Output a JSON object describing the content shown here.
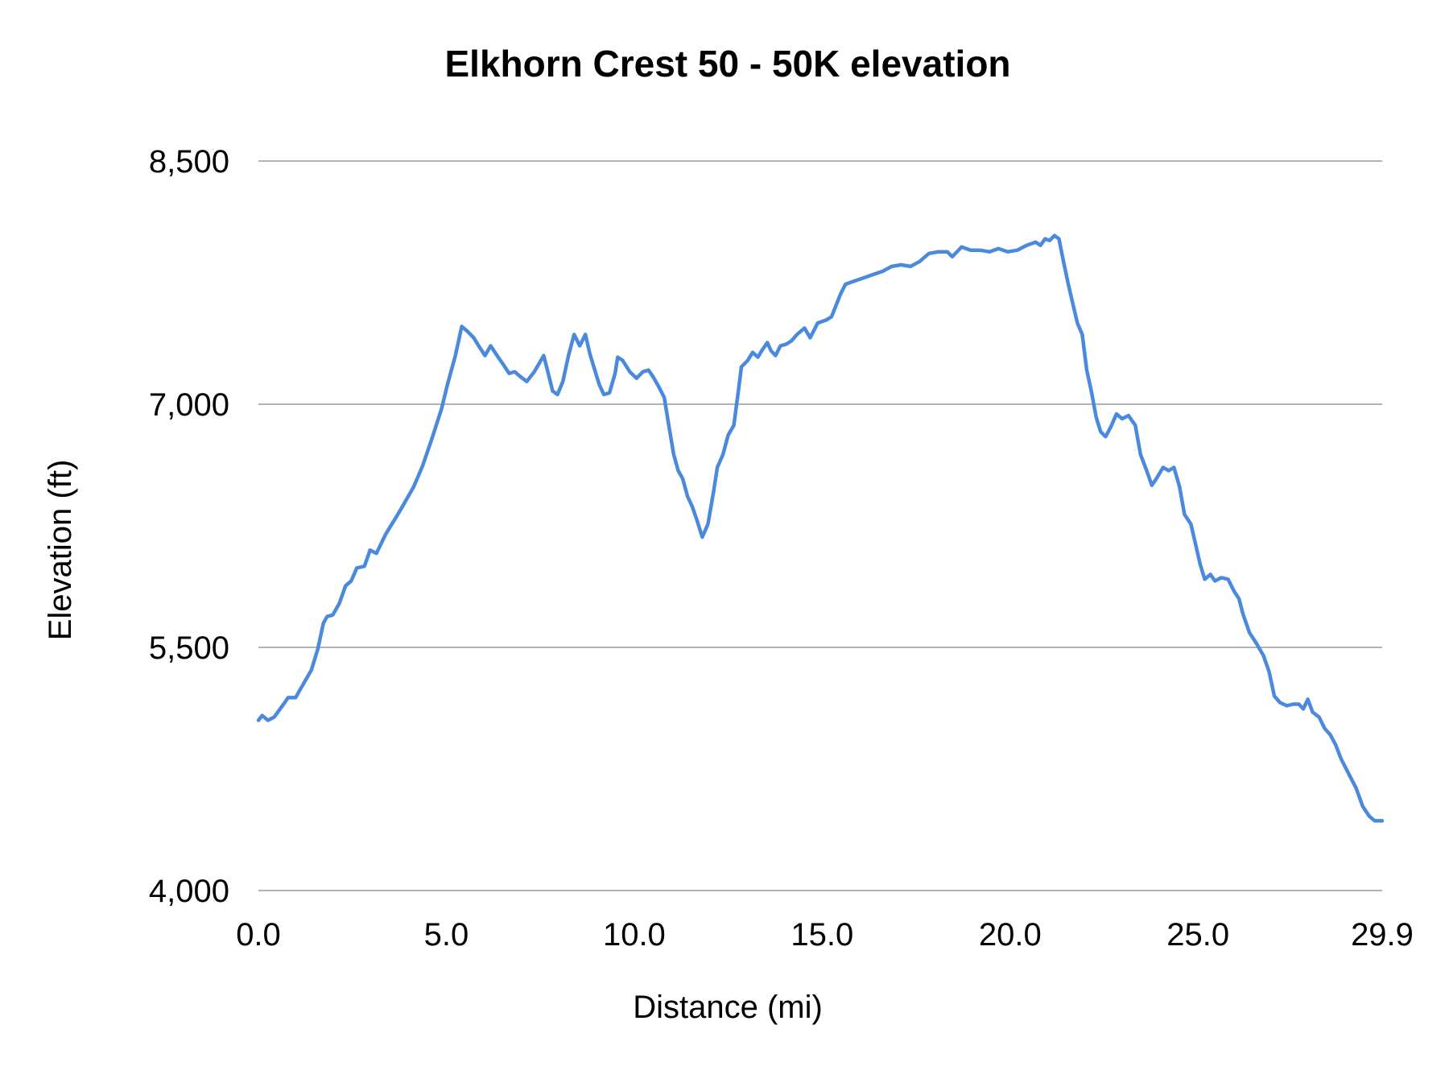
{
  "chart_data": {
    "type": "line",
    "title": "Elkhorn Crest 50 - 50K elevation",
    "xlabel": "Distance (mi)",
    "ylabel": "Elevation (ft)",
    "xlim": [
      0,
      29.9
    ],
    "ylim": [
      4000,
      8500
    ],
    "xticks": [
      "0.0",
      "5.0",
      "10.0",
      "15.0",
      "20.0",
      "25.0",
      "29.9"
    ],
    "xtick_values": [
      0,
      5,
      10,
      15,
      20,
      25,
      29.9
    ],
    "yticks": [
      "4,000",
      "5,500",
      "7,000",
      "8,500"
    ],
    "ytick_values": [
      4000,
      5500,
      7000,
      8500
    ],
    "grid": "horizontal",
    "legend": "none",
    "line_color": "#4a89dc",
    "grid_color": "#b3b3b3",
    "x": [
      0.0,
      0.1,
      0.25,
      0.42,
      0.67,
      0.79,
      0.99,
      1.16,
      1.41,
      1.58,
      1.73,
      1.83,
      1.98,
      2.15,
      2.32,
      2.47,
      2.62,
      2.82,
      2.97,
      3.14,
      3.39,
      3.63,
      3.81,
      4.13,
      4.37,
      4.62,
      4.87,
      5.04,
      5.24,
      5.41,
      5.56,
      5.73,
      5.86,
      6.03,
      6.18,
      6.35,
      6.5,
      6.67,
      6.82,
      6.97,
      7.14,
      7.34,
      7.59,
      7.71,
      7.83,
      7.96,
      8.1,
      8.25,
      8.4,
      8.55,
      8.7,
      8.82,
      8.95,
      9.07,
      9.19,
      9.34,
      9.49,
      9.56,
      9.69,
      9.88,
      10.06,
      10.23,
      10.38,
      10.5,
      10.67,
      10.8,
      10.92,
      11.05,
      11.17,
      11.29,
      11.42,
      11.54,
      11.66,
      11.81,
      11.96,
      12.11,
      12.21,
      12.36,
      12.5,
      12.65,
      12.78,
      12.85,
      13.02,
      13.15,
      13.29,
      13.39,
      13.54,
      13.64,
      13.76,
      13.89,
      14.04,
      14.18,
      14.33,
      14.53,
      14.68,
      14.88,
      15.12,
      15.25,
      15.37,
      15.49,
      15.62,
      15.86,
      16.11,
      16.36,
      16.61,
      16.85,
      17.1,
      17.35,
      17.59,
      17.84,
      18.09,
      18.33,
      18.46,
      18.71,
      18.95,
      19.2,
      19.45,
      19.69,
      19.94,
      20.19,
      20.44,
      20.68,
      20.81,
      20.93,
      21.05,
      21.18,
      21.3,
      21.42,
      21.55,
      21.67,
      21.79,
      21.92,
      22.04,
      22.17,
      22.29,
      22.41,
      22.54,
      22.68,
      22.83,
      22.98,
      23.15,
      23.33,
      23.47,
      23.65,
      23.77,
      23.89,
      24.07,
      24.22,
      24.36,
      24.51,
      24.64,
      24.81,
      24.96,
      25.06,
      25.18,
      25.33,
      25.45,
      25.62,
      25.8,
      25.95,
      26.09,
      26.19,
      26.37,
      26.54,
      26.74,
      26.89,
      27.03,
      27.18,
      27.36,
      27.53,
      27.68,
      27.8,
      27.92,
      28.05,
      28.22,
      28.37,
      28.52,
      28.66,
      28.81,
      29.01,
      29.21,
      29.38,
      29.55,
      29.7,
      29.9
    ],
    "y": [
      5050,
      5080,
      5050,
      5070,
      5150,
      5190,
      5190,
      5260,
      5360,
      5490,
      5650,
      5690,
      5700,
      5770,
      5880,
      5910,
      5990,
      6000,
      6100,
      6080,
      6200,
      6290,
      6360,
      6490,
      6620,
      6790,
      6970,
      7130,
      7300,
      7480,
      7450,
      7410,
      7360,
      7300,
      7360,
      7300,
      7250,
      7190,
      7200,
      7170,
      7140,
      7200,
      7300,
      7190,
      7080,
      7060,
      7140,
      7300,
      7430,
      7360,
      7430,
      7310,
      7210,
      7120,
      7060,
      7070,
      7190,
      7290,
      7270,
      7200,
      7160,
      7200,
      7210,
      7170,
      7100,
      7040,
      6870,
      6690,
      6590,
      6540,
      6430,
      6370,
      6290,
      6180,
      6260,
      6460,
      6610,
      6690,
      6810,
      6870,
      7100,
      7230,
      7270,
      7320,
      7290,
      7330,
      7380,
      7330,
      7300,
      7360,
      7370,
      7390,
      7430,
      7470,
      7410,
      7500,
      7520,
      7540,
      7610,
      7680,
      7740,
      7760,
      7780,
      7800,
      7820,
      7850,
      7860,
      7850,
      7880,
      7930,
      7940,
      7940,
      7910,
      7970,
      7950,
      7950,
      7940,
      7960,
      7940,
      7950,
      7980,
      8000,
      7980,
      8020,
      8010,
      8040,
      8020,
      7880,
      7740,
      7620,
      7500,
      7430,
      7210,
      7070,
      6920,
      6830,
      6800,
      6860,
      6940,
      6910,
      6930,
      6870,
      6690,
      6580,
      6500,
      6540,
      6610,
      6590,
      6610,
      6490,
      6320,
      6260,
      6110,
      6010,
      5920,
      5950,
      5910,
      5930,
      5920,
      5850,
      5800,
      5710,
      5590,
      5530,
      5450,
      5350,
      5200,
      5160,
      5140,
      5150,
      5150,
      5120,
      5180,
      5100,
      5070,
      5000,
      4960,
      4900,
      4810,
      4720,
      4630,
      4520,
      4460,
      4430,
      4430
    ]
  }
}
